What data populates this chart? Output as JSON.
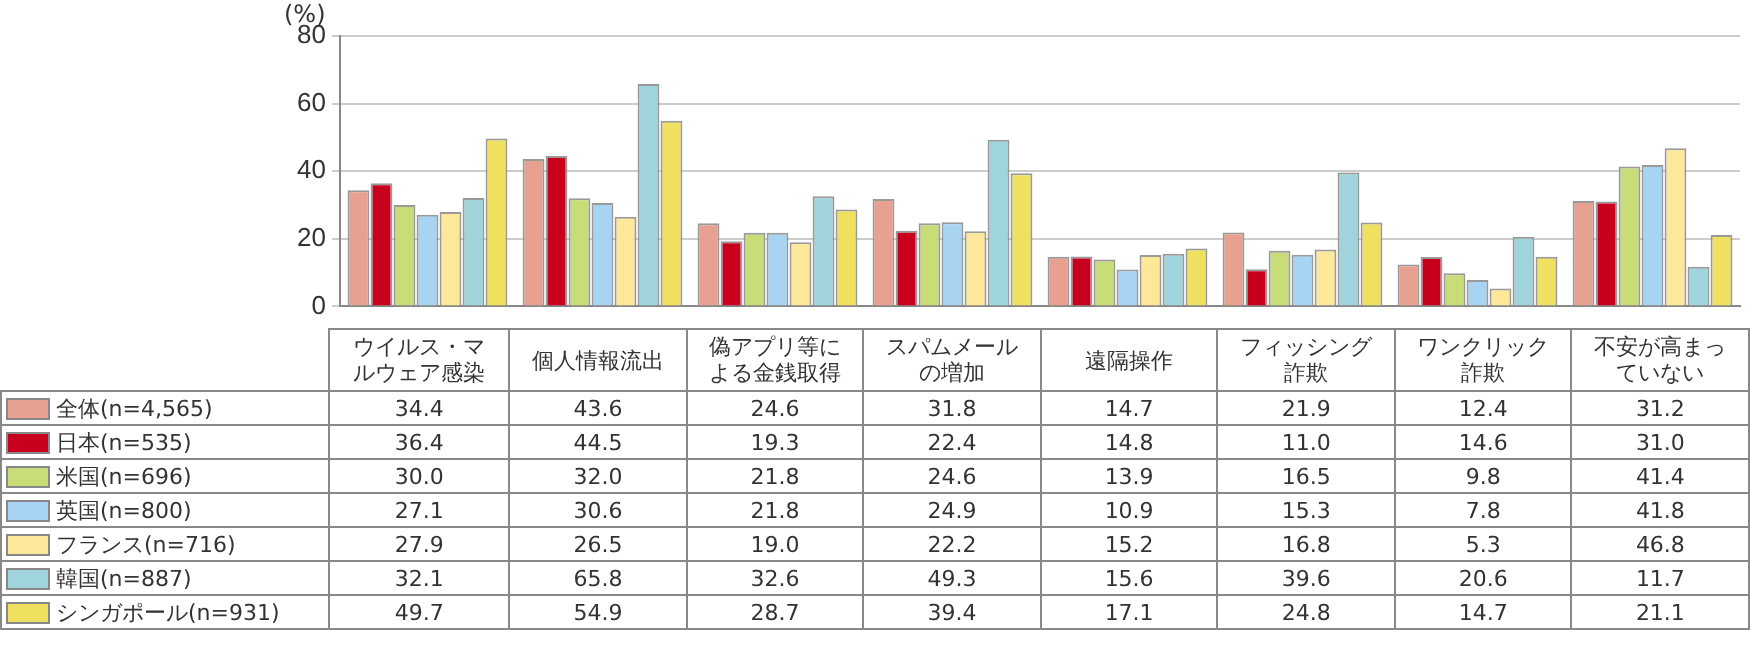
{
  "chart_data": {
    "type": "bar",
    "ylabel": "(%)",
    "categories": [
      "ウイルス・マルウェア感染",
      "個人情報流出",
      "偽アプリ等による金銭取得",
      "スパムメールの増加",
      "遠隔操作",
      "フィッシング詐欺",
      "ワンクリック詐欺",
      "不安が高まっていない"
    ],
    "series": [
      {
        "name": "全体(n=4,565)",
        "color": "#e8a090",
        "values": [
          34.4,
          43.6,
          24.6,
          31.8,
          14.7,
          21.9,
          12.4,
          31.2
        ],
        "value_labels": [
          "34.4",
          "43.6",
          "24.6",
          "31.8",
          "14.7",
          "21.9",
          "12.4",
          "31.2"
        ]
      },
      {
        "name": "日本(n=535)",
        "color": "#c8001e",
        "values": [
          36.4,
          44.5,
          19.3,
          22.4,
          14.8,
          11.0,
          14.6,
          31.0
        ],
        "value_labels": [
          "36.4",
          "44.5",
          "19.3",
          "22.4",
          "14.8",
          "11.0",
          "14.6",
          "31.0"
        ]
      },
      {
        "name": "米国(n=696)",
        "color": "#c8dc78",
        "values": [
          30.0,
          32.0,
          21.8,
          24.6,
          13.9,
          16.5,
          9.8,
          41.4
        ],
        "value_labels": [
          "30.0",
          "32.0",
          "21.8",
          "24.6",
          "13.9",
          "16.5",
          "9.8",
          "41.4"
        ]
      },
      {
        "name": "英国(n=800)",
        "color": "#a8d4f4",
        "values": [
          27.1,
          30.6,
          21.8,
          24.9,
          10.9,
          15.3,
          7.8,
          41.8
        ],
        "value_labels": [
          "27.1",
          "30.6",
          "21.8",
          "24.9",
          "10.9",
          "15.3",
          "7.8",
          "41.8"
        ]
      },
      {
        "name": "フランス(n=716)",
        "color": "#fce898",
        "values": [
          27.9,
          26.5,
          19.0,
          22.2,
          15.2,
          16.8,
          5.3,
          46.8
        ],
        "value_labels": [
          "27.9",
          "26.5",
          "19.0",
          "22.2",
          "15.2",
          "16.8",
          "5.3",
          "46.8"
        ]
      },
      {
        "name": "韓国(n=887)",
        "color": "#9fd4dc",
        "values": [
          32.1,
          65.8,
          32.6,
          49.3,
          15.6,
          39.6,
          20.6,
          11.7
        ],
        "value_labels": [
          "32.1",
          "65.8",
          "32.6",
          "49.3",
          "15.6",
          "39.6",
          "20.6",
          "11.7"
        ]
      },
      {
        "name": "シンガポール(n=931)",
        "color": "#f0e060",
        "values": [
          49.7,
          54.9,
          28.7,
          39.4,
          17.1,
          24.8,
          14.7,
          21.1
        ],
        "value_labels": [
          "49.7",
          "54.9",
          "28.7",
          "39.4",
          "17.1",
          "24.8",
          "14.7",
          "21.1"
        ]
      }
    ],
    "ylim": [
      0,
      80
    ],
    "yticks": [
      0,
      20,
      40,
      60,
      80
    ],
    "grid": "y",
    "legend": "bottom"
  }
}
